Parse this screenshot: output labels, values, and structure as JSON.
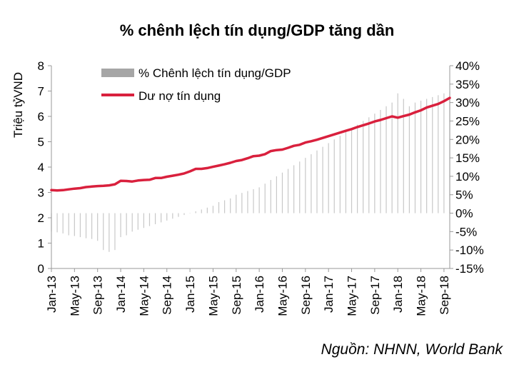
{
  "chart_data": {
    "type": "bar+line",
    "title": "% chênh lệch tín dụng/GDP tăng dần",
    "ylabel_left": "Triệu tỷVND",
    "left_ticks": [
      "0",
      "1",
      "2",
      "3",
      "4",
      "5",
      "6",
      "7",
      "8"
    ],
    "right_ticks": [
      "-15%",
      "-10%",
      "-5%",
      "0%",
      "5%",
      "10%",
      "15%",
      "20%",
      "25%",
      "30%",
      "35%",
      "40%"
    ],
    "x_tick_labels": [
      "Jan-13",
      "May-13",
      "Sep-13",
      "Jan-14",
      "May-14",
      "Sep-14",
      "Jan-15",
      "May-15",
      "Sep-15",
      "Jan-16",
      "May-16",
      "Sep-16",
      "Jan-17",
      "May-17",
      "Sep-17",
      "Jan-18",
      "May-18",
      "Sep-18"
    ],
    "ylim_left": [
      0,
      8
    ],
    "ylim_right": [
      -15,
      40
    ],
    "legend": [
      "% Chênh lệch tín dụng/GDP",
      "Dư nợ tín dụng"
    ],
    "source": "Nguồn: NHNN, World Bank",
    "colors": {
      "line": "#d9203d",
      "bar": "#c8c8c8",
      "bar_legend": "#a6a6a6",
      "axis": "#999999"
    },
    "months": 70,
    "series": [
      {
        "name": "Dư nợ tín dụng",
        "axis": "left",
        "values": [
          3.09,
          3.08,
          3.09,
          3.12,
          3.15,
          3.17,
          3.21,
          3.23,
          3.25,
          3.26,
          3.28,
          3.32,
          3.46,
          3.45,
          3.43,
          3.47,
          3.49,
          3.5,
          3.57,
          3.57,
          3.62,
          3.66,
          3.7,
          3.75,
          3.83,
          3.93,
          3.93,
          3.96,
          4.01,
          4.06,
          4.11,
          4.17,
          4.24,
          4.28,
          4.35,
          4.43,
          4.45,
          4.51,
          4.63,
          4.67,
          4.69,
          4.76,
          4.84,
          4.88,
          4.97,
          5.02,
          5.08,
          5.15,
          5.22,
          5.29,
          5.36,
          5.43,
          5.5,
          5.58,
          5.65,
          5.72,
          5.8,
          5.86,
          5.93,
          6.0,
          5.95,
          6.01,
          6.07,
          6.16,
          6.24,
          6.35,
          6.42,
          6.49,
          6.6,
          6.73
        ]
      },
      {
        "name": "% Chênh lệch tín dụng/GDP",
        "axis": "right",
        "values": [
          -5.0,
          -5.2,
          -5.5,
          -6.0,
          -6.2,
          -6.5,
          -6.8,
          -7.0,
          -7.5,
          -10.0,
          -10.5,
          -10.0,
          -6.5,
          -6.0,
          -5.0,
          -4.5,
          -4.0,
          -3.5,
          -3.0,
          -2.5,
          -2.0,
          -1.5,
          -1.0,
          -0.5,
          0.0,
          0.5,
          1.0,
          1.5,
          2.0,
          3.0,
          3.5,
          4.0,
          5.0,
          5.5,
          6.0,
          6.5,
          7.0,
          8.0,
          9.0,
          10.0,
          11.0,
          12.0,
          13.0,
          14.0,
          15.0,
          16.0,
          17.0,
          18.0,
          19.0,
          20.0,
          21.0,
          22.0,
          23.0,
          24.0,
          25.0,
          26.0,
          27.0,
          28.0,
          29.0,
          30.0,
          32.5,
          31.0,
          29.0,
          30.0,
          30.5,
          31.0,
          31.5,
          32.0,
          32.5,
          33.0
        ]
      }
    ]
  }
}
